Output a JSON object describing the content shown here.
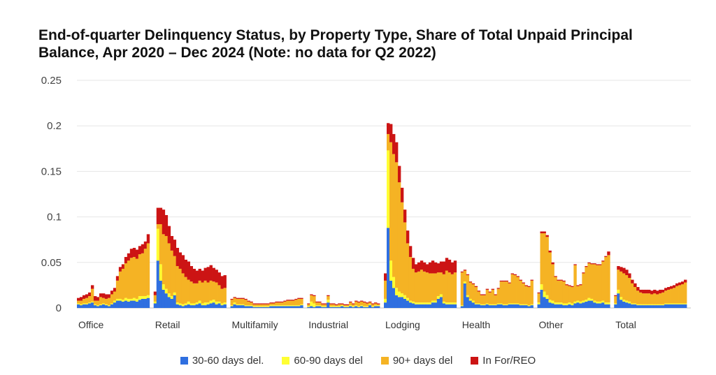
{
  "chart_data": {
    "type": "bar",
    "stacked": true,
    "title": "End-of-quarter Delinquency Status, by Property Type, Share of Total Unpaid Principal Balance, Apr 2020 – Dec 2024 (Note: no data for Q2 2022)",
    "xlabel": "",
    "ylabel": "",
    "ylim": [
      0,
      0.25
    ],
    "yticks": [
      "0",
      "0.05",
      "0.1",
      "0.15",
      "0.2",
      "0.25"
    ],
    "grid": true,
    "legend_position": "bottom",
    "categories": [
      "Office",
      "Retail",
      "Multifamily",
      "Industrial",
      "Lodging",
      "Health",
      "Other",
      "Total"
    ],
    "series_colors": [
      "#2f6fe0",
      "#ffff33",
      "#f5b324",
      "#cc1414"
    ],
    "series": [
      {
        "name": "30-60 days del.",
        "values": [
          [
            0.004,
            0.003,
            0.004,
            0.004,
            0.005,
            0.006,
            0.003,
            0.002,
            0.003,
            0.004,
            0.003,
            0.002,
            0.004,
            0.006,
            0.008,
            0.008,
            0.007,
            0.008,
            0.007,
            0.008,
            0.008,
            0.007,
            0.009,
            0.01,
            0.01,
            0.011
          ],
          [
            0.005,
            0.052,
            0.03,
            0.02,
            0.016,
            0.012,
            0.01,
            0.014,
            0.004,
            0.003,
            0.002,
            0.003,
            0.004,
            0.003,
            0.003,
            0.004,
            0.005,
            0.003,
            0.003,
            0.004,
            0.005,
            0.006,
            0.004,
            0.005,
            0.003,
            0.004
          ],
          [
            0.002,
            0.004,
            0.003,
            0.003,
            0.003,
            0.002,
            0.002,
            0.002,
            0.001,
            0.001,
            0.001,
            0.001,
            0.001,
            0.001,
            0.002,
            0.002,
            0.002,
            0.002,
            0.002,
            0.002,
            0.002,
            0.002,
            0.002,
            0.002,
            0.002,
            0.003
          ],
          [
            0.001,
            0.002,
            0.001,
            0.002,
            0.002,
            0.001,
            0.001,
            0.006,
            0.001,
            0.001,
            0.001,
            0.001,
            0.002,
            0.001,
            0.001,
            0.002,
            0.001,
            0.002,
            0.001,
            0.002,
            0.001,
            0.001,
            0.003,
            0.001,
            0.002,
            0.002
          ],
          [
            0.006,
            0.088,
            0.03,
            0.022,
            0.014,
            0.012,
            0.012,
            0.01,
            0.008,
            0.006,
            0.005,
            0.004,
            0.004,
            0.004,
            0.004,
            0.004,
            0.004,
            0.006,
            0.006,
            0.01,
            0.012,
            0.005,
            0.004,
            0.004,
            0.004,
            0.004
          ],
          [
            0.002,
            0.027,
            0.012,
            0.008,
            0.006,
            0.004,
            0.004,
            0.003,
            0.003,
            0.004,
            0.003,
            0.003,
            0.003,
            0.004,
            0.004,
            0.003,
            0.003,
            0.004,
            0.004,
            0.004,
            0.004,
            0.003,
            0.003,
            0.003,
            0.002,
            0.003
          ],
          [
            0.004,
            0.02,
            0.012,
            0.01,
            0.006,
            0.005,
            0.004,
            0.004,
            0.004,
            0.003,
            0.003,
            0.004,
            0.003,
            0.005,
            0.006,
            0.005,
            0.006,
            0.007,
            0.008,
            0.008,
            0.006,
            0.005,
            0.005,
            0.006,
            0.004,
            0.004
          ],
          [
            0.004,
            0.016,
            0.009,
            0.007,
            0.006,
            0.005,
            0.004,
            0.004,
            0.003,
            0.003,
            0.003,
            0.003,
            0.003,
            0.003,
            0.003,
            0.003,
            0.003,
            0.003,
            0.004,
            0.004,
            0.004,
            0.004,
            0.004,
            0.004,
            0.004,
            0.004
          ]
        ]
      },
      {
        "name": "60-90 days del",
        "values": [
          [
            0.001,
            0.001,
            0.001,
            0.001,
            0.001,
            0.001,
            0.001,
            0.001,
            0.001,
            0.001,
            0.001,
            0.001,
            0.001,
            0.002,
            0.002,
            0.002,
            0.002,
            0.003,
            0.003,
            0.002,
            0.003,
            0.003,
            0.004,
            0.003,
            0.003,
            0.003
          ],
          [
            0.002,
            0.035,
            0.018,
            0.006,
            0.005,
            0.004,
            0.003,
            0.003,
            0.002,
            0.002,
            0.002,
            0.002,
            0.003,
            0.002,
            0.002,
            0.002,
            0.003,
            0.002,
            0.003,
            0.002,
            0.003,
            0.003,
            0.003,
            0.002,
            0.002,
            0.002
          ],
          [
            0.001,
            0.002,
            0.001,
            0.001,
            0.001,
            0.001,
            0.001,
            0.001,
            0.001,
            0.001,
            0.001,
            0.001,
            0.001,
            0.001,
            0.001,
            0.001,
            0.001,
            0.001,
            0.001,
            0.001,
            0.001,
            0.001,
            0.001,
            0.001,
            0.001,
            0.001
          ],
          [
            0.001,
            0.005,
            0.004,
            0.001,
            0.001,
            0.001,
            0.001,
            0.003,
            0.001,
            0.001,
            0.001,
            0.001,
            0.001,
            0.001,
            0.001,
            0.001,
            0.001,
            0.001,
            0.001,
            0.001,
            0.001,
            0.001,
            0.001,
            0.001,
            0.001,
            0.001
          ],
          [
            0.004,
            0.085,
            0.022,
            0.012,
            0.008,
            0.006,
            0.004,
            0.004,
            0.003,
            0.002,
            0.002,
            0.002,
            0.002,
            0.002,
            0.002,
            0.002,
            0.002,
            0.002,
            0.002,
            0.003,
            0.003,
            0.002,
            0.002,
            0.002,
            0.002,
            0.002
          ],
          [
            0.001,
            0.002,
            0.002,
            0.002,
            0.002,
            0.001,
            0.001,
            0.001,
            0.001,
            0.001,
            0.001,
            0.001,
            0.001,
            0.001,
            0.001,
            0.001,
            0.001,
            0.001,
            0.001,
            0.001,
            0.001,
            0.001,
            0.001,
            0.001,
            0.001,
            0.001
          ],
          [
            0.002,
            0.006,
            0.006,
            0.004,
            0.003,
            0.003,
            0.002,
            0.002,
            0.002,
            0.002,
            0.002,
            0.002,
            0.002,
            0.002,
            0.002,
            0.002,
            0.002,
            0.002,
            0.003,
            0.002,
            0.002,
            0.002,
            0.002,
            0.002,
            0.002,
            0.002
          ],
          [
            0.001,
            0.004,
            0.003,
            0.002,
            0.002,
            0.002,
            0.001,
            0.001,
            0.001,
            0.001,
            0.001,
            0.001,
            0.001,
            0.001,
            0.001,
            0.001,
            0.001,
            0.001,
            0.001,
            0.001,
            0.001,
            0.001,
            0.001,
            0.001,
            0.001,
            0.001
          ]
        ]
      },
      {
        "name": "90+ days del",
        "values": [
          [
            0.003,
            0.004,
            0.005,
            0.006,
            0.007,
            0.014,
            0.004,
            0.005,
            0.008,
            0.006,
            0.006,
            0.008,
            0.01,
            0.01,
            0.02,
            0.03,
            0.034,
            0.038,
            0.042,
            0.045,
            0.045,
            0.044,
            0.046,
            0.047,
            0.052,
            0.057
          ],
          [
            0.007,
            0.005,
            0.044,
            0.055,
            0.058,
            0.055,
            0.05,
            0.04,
            0.04,
            0.038,
            0.034,
            0.029,
            0.024,
            0.024,
            0.022,
            0.021,
            0.022,
            0.023,
            0.024,
            0.022,
            0.022,
            0.02,
            0.021,
            0.018,
            0.016,
            0.016
          ],
          [
            0.006,
            0.005,
            0.006,
            0.006,
            0.006,
            0.006,
            0.004,
            0.003,
            0.002,
            0.002,
            0.002,
            0.002,
            0.002,
            0.002,
            0.002,
            0.002,
            0.003,
            0.003,
            0.003,
            0.004,
            0.005,
            0.005,
            0.005,
            0.006,
            0.007,
            0.006
          ],
          [
            0.002,
            0.007,
            0.008,
            0.003,
            0.003,
            0.002,
            0.002,
            0.004,
            0.002,
            0.002,
            0.001,
            0.002,
            0.001,
            0.001,
            0.001,
            0.003,
            0.002,
            0.004,
            0.004,
            0.004,
            0.004,
            0.003,
            0.002,
            0.002,
            0.002,
            0.001
          ],
          [
            0.02,
            0.018,
            0.13,
            0.135,
            0.138,
            0.12,
            0.1,
            0.08,
            0.06,
            0.048,
            0.036,
            0.033,
            0.034,
            0.036,
            0.034,
            0.033,
            0.032,
            0.03,
            0.03,
            0.026,
            0.024,
            0.03,
            0.035,
            0.033,
            0.031,
            0.033
          ],
          [
            0.036,
            0.012,
            0.022,
            0.018,
            0.018,
            0.018,
            0.013,
            0.01,
            0.01,
            0.015,
            0.013,
            0.016,
            0.01,
            0.016,
            0.024,
            0.025,
            0.025,
            0.022,
            0.032,
            0.031,
            0.029,
            0.026,
            0.023,
            0.02,
            0.02,
            0.026
          ],
          [
            0.01,
            0.056,
            0.064,
            0.064,
            0.052,
            0.04,
            0.028,
            0.024,
            0.024,
            0.024,
            0.02,
            0.018,
            0.018,
            0.04,
            0.016,
            0.018,
            0.03,
            0.036,
            0.038,
            0.038,
            0.04,
            0.04,
            0.04,
            0.043,
            0.05,
            0.052
          ],
          [
            0.008,
            0.022,
            0.028,
            0.029,
            0.028,
            0.026,
            0.022,
            0.018,
            0.015,
            0.013,
            0.012,
            0.012,
            0.012,
            0.011,
            0.012,
            0.011,
            0.012,
            0.013,
            0.014,
            0.015,
            0.016,
            0.017,
            0.019,
            0.02,
            0.021,
            0.023
          ]
        ]
      },
      {
        "name": "In For/REO",
        "values": [
          [
            0.003,
            0.004,
            0.004,
            0.004,
            0.004,
            0.004,
            0.005,
            0.004,
            0.004,
            0.005,
            0.005,
            0.004,
            0.004,
            0.004,
            0.005,
            0.005,
            0.005,
            0.007,
            0.008,
            0.01,
            0.01,
            0.01,
            0.009,
            0.01,
            0.008,
            0.01
          ],
          [
            0.004,
            0.018,
            0.018,
            0.027,
            0.023,
            0.019,
            0.016,
            0.018,
            0.02,
            0.018,
            0.02,
            0.019,
            0.02,
            0.017,
            0.016,
            0.014,
            0.013,
            0.013,
            0.014,
            0.017,
            0.017,
            0.015,
            0.014,
            0.014,
            0.014,
            0.014
          ],
          [
            0.001,
            0.001,
            0.001,
            0.001,
            0.001,
            0.001,
            0.001,
            0.001,
            0.001,
            0.001,
            0.001,
            0.001,
            0.001,
            0.001,
            0.001,
            0.001,
            0.001,
            0.001,
            0.001,
            0.001,
            0.001,
            0.001,
            0.001,
            0.001,
            0.001,
            0.001
          ],
          [
            0.001,
            0.001,
            0.001,
            0.001,
            0.001,
            0.001,
            0.001,
            0.001,
            0.001,
            0.001,
            0.001,
            0.001,
            0.001,
            0.001,
            0.001,
            0.001,
            0.001,
            0.001,
            0.001,
            0.001,
            0.001,
            0.001,
            0.001,
            0.001,
            0.001,
            0.001
          ],
          [
            0.008,
            0.012,
            0.02,
            0.022,
            0.022,
            0.018,
            0.016,
            0.014,
            0.014,
            0.012,
            0.012,
            0.009,
            0.01,
            0.01,
            0.01,
            0.009,
            0.012,
            0.014,
            0.012,
            0.01,
            0.012,
            0.014,
            0.014,
            0.014,
            0.013,
            0.013
          ],
          [
            0.001,
            0.001,
            0.001,
            0.001,
            0.001,
            0.001,
            0.001,
            0.001,
            0.001,
            0.001,
            0.001,
            0.001,
            0.001,
            0.001,
            0.001,
            0.001,
            0.001,
            0.001,
            0.001,
            0.001,
            0.001,
            0.001,
            0.001,
            0.001,
            0.001,
            0.001
          ],
          [
            0.001,
            0.002,
            0.002,
            0.002,
            0.002,
            0.002,
            0.001,
            0.001,
            0.001,
            0.001,
            0.001,
            0.001,
            0.001,
            0.001,
            0.001,
            0.001,
            0.001,
            0.001,
            0.001,
            0.001,
            0.001,
            0.001,
            0.001,
            0.001,
            0.001,
            0.004
          ],
          [
            0.001,
            0.004,
            0.005,
            0.006,
            0.006,
            0.005,
            0.004,
            0.004,
            0.004,
            0.003,
            0.004,
            0.004,
            0.004,
            0.004,
            0.004,
            0.004,
            0.004,
            0.003,
            0.003,
            0.003,
            0.003,
            0.003,
            0.003,
            0.003,
            0.003,
            0.003
          ]
        ]
      }
    ]
  }
}
